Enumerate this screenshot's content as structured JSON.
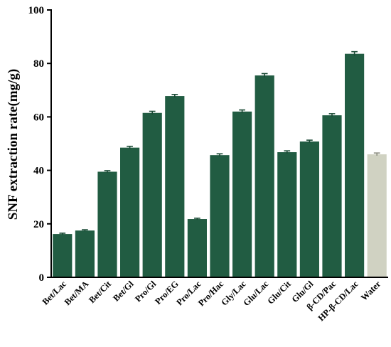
{
  "chart_data": {
    "type": "bar",
    "title": "",
    "xlabel": "",
    "ylabel": "SNF extraction rate(mg/g)",
    "ylim": [
      0,
      100
    ],
    "yticks": [
      0,
      20,
      40,
      60,
      80,
      100
    ],
    "grid": false,
    "legend": "none",
    "categories": [
      "Bet/Lac",
      "Bet/MA",
      "Bet/Cit",
      "Bet/Gl",
      "Pro/Gl",
      "Pro/EG",
      "Pro/Lac",
      "Pro/Hac",
      "Gly/Lac",
      "Glu/Lac",
      "Glu/Cit",
      "Glu/Gl",
      "β-CD/Pac",
      "HP-β-CD/Lac",
      "Water"
    ],
    "values": [
      16.2,
      17.5,
      39.5,
      48.5,
      61.5,
      67.8,
      21.8,
      45.7,
      62.0,
      75.5,
      46.8,
      50.8,
      60.6,
      83.6,
      46.0
    ],
    "errors": [
      0.3,
      0.3,
      0.4,
      0.5,
      0.6,
      0.6,
      0.3,
      0.5,
      0.6,
      0.7,
      0.5,
      0.5,
      0.6,
      0.8,
      0.5
    ],
    "colors": {
      "bar": "#215c42",
      "water_bar": "#d0d2c2",
      "axis": "#000000"
    }
  }
}
